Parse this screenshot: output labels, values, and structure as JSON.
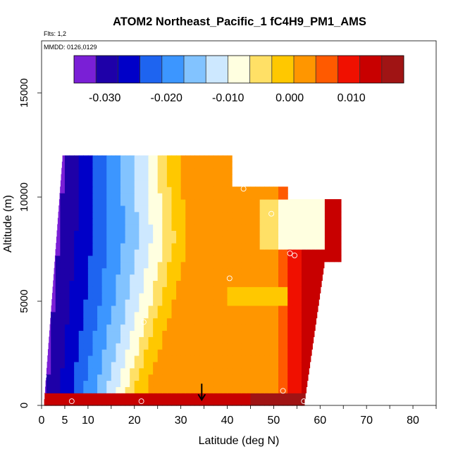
{
  "chart_data": {
    "type": "heatmap",
    "title": "ATOM2 Northeast_Pacific_1 fC4H9_PM1_AMS",
    "subtitle_flights": "Flts: 1,2",
    "subtitle_dates": "MMDD: 0126,0129",
    "xlabel": "Latitude (deg N)",
    "ylabel": "Altitude (m)",
    "xlim": [
      0,
      85
    ],
    "ylim": [
      0,
      17500
    ],
    "x_ticks": [
      0,
      5,
      10,
      20,
      30,
      40,
      50,
      60,
      70,
      80
    ],
    "y_ticks": [
      0,
      5000,
      10000,
      15000
    ],
    "y_tick_labels": [
      "0",
      "5000",
      "10000",
      "15000"
    ],
    "colorbar": {
      "range": [
        -0.035,
        0.0185
      ],
      "tick_values": [
        -0.03,
        -0.02,
        -0.01,
        0.0,
        0.01
      ],
      "tick_labels": [
        "-0.030",
        "-0.020",
        "-0.010",
        "0.000",
        "0.010"
      ],
      "colors": [
        "#7a1fd6",
        "#1e00a8",
        "#0000c8",
        "#1e64f0",
        "#3c96ff",
        "#82c3ff",
        "#cde8ff",
        "#ffffe0",
        "#ffe066",
        "#ffc800",
        "#ff9600",
        "#ff5a00",
        "#f01000",
        "#c80000",
        "#a01414"
      ]
    },
    "field": {
      "description_values": "fC4H9 value as a function of latitude (deg N) and altitude (m)",
      "alt_max": 11900,
      "lat_left_at_top": 4.5,
      "lat_left_at_bottom": 0.5,
      "upper_plateau": {
        "lat_right": 64.5,
        "alt_bottom": 7000,
        "alt_top": 10000
      },
      "zero_isoline": [
        [
          20,
          0
        ],
        [
          27,
          5000
        ],
        [
          30,
          8000
        ],
        [
          29,
          10000
        ],
        [
          28,
          11900
        ]
      ],
      "surface_layer": {
        "alt_top": 700,
        "value": 0.012
      }
    },
    "sample_points": [
      {
        "lat": 3.5,
        "alt": 11200
      },
      {
        "lat": 43.5,
        "alt": 10400
      },
      {
        "lat": 49.5,
        "alt": 9200
      },
      {
        "lat": 53.5,
        "alt": 7300
      },
      {
        "lat": 54.5,
        "alt": 7200
      },
      {
        "lat": 40.5,
        "alt": 6100
      },
      {
        "lat": 22.0,
        "alt": 4000
      },
      {
        "lat": 0.5,
        "alt": 1400
      },
      {
        "lat": 52.0,
        "alt": 700
      },
      {
        "lat": 6.5,
        "alt": 200
      },
      {
        "lat": 21.5,
        "alt": 200
      },
      {
        "lat": 56.5,
        "alt": 200
      }
    ],
    "marker": {
      "lat": 34.5,
      "alt": 300
    }
  }
}
